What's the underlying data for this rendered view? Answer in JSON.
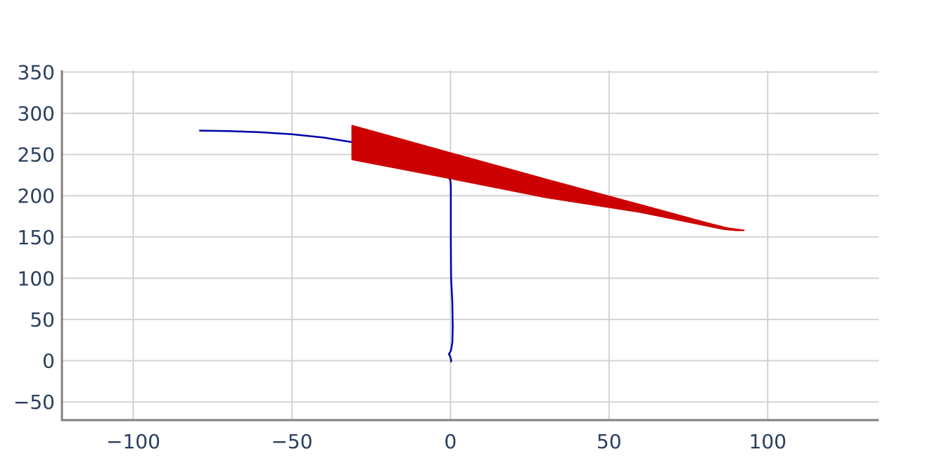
{
  "chart_data": {
    "type": "line",
    "title": "",
    "xlabel": "",
    "ylabel": "",
    "xlim": [
      -122.5,
      135
    ],
    "ylim": [
      -72,
      352
    ],
    "x_ticks": [
      -100,
      -50,
      0,
      50,
      100
    ],
    "y_ticks": [
      -50,
      0,
      50,
      100,
      150,
      200,
      250,
      300,
      350
    ],
    "x_tick_labels": [
      "−100",
      "−50",
      "0",
      "50",
      "100"
    ],
    "y_tick_labels": [
      "−50",
      "0",
      "50",
      "100",
      "150",
      "200",
      "250",
      "300",
      "350"
    ],
    "grid": true,
    "legend": "none",
    "colors": {
      "grid": "#d3d3d3",
      "axis": "#808080",
      "tick_text": "#2a3f5f",
      "line": "#0000aa",
      "fill": "#cc0000"
    },
    "series": [
      {
        "kind": "line",
        "points": [
          [
            -79,
            279
          ],
          [
            -70,
            278.5
          ],
          [
            -60,
            277
          ],
          [
            -50,
            274.5
          ],
          [
            -40,
            270.5
          ],
          [
            -31,
            265
          ],
          [
            -20,
            257
          ],
          [
            -10,
            245
          ],
          [
            -5,
            237
          ],
          [
            -2,
            228
          ],
          [
            -0.5,
            222
          ],
          [
            0,
            218
          ],
          [
            0.1,
            210
          ],
          [
            0.1,
            150
          ],
          [
            0.2,
            100
          ],
          [
            0.6,
            70
          ],
          [
            0.7,
            40
          ],
          [
            0.6,
            22
          ],
          [
            0.1,
            12
          ],
          [
            -0.5,
            8
          ],
          [
            -0.1,
            5
          ],
          [
            0.2,
            1
          ],
          [
            0.2,
            -1
          ]
        ]
      },
      {
        "kind": "filled-polygon",
        "points": [
          [
            -31,
            285
          ],
          [
            -2,
            254
          ],
          [
            30,
            220
          ],
          [
            60,
            189
          ],
          [
            80,
            168
          ],
          [
            87,
            161
          ],
          [
            89,
            160
          ],
          [
            92.5,
            158
          ],
          [
            90,
            158
          ],
          [
            86,
            159.5
          ],
          [
            60,
            180
          ],
          [
            30,
            198
          ],
          [
            0,
            221
          ],
          [
            -31,
            244
          ]
        ]
      }
    ]
  }
}
